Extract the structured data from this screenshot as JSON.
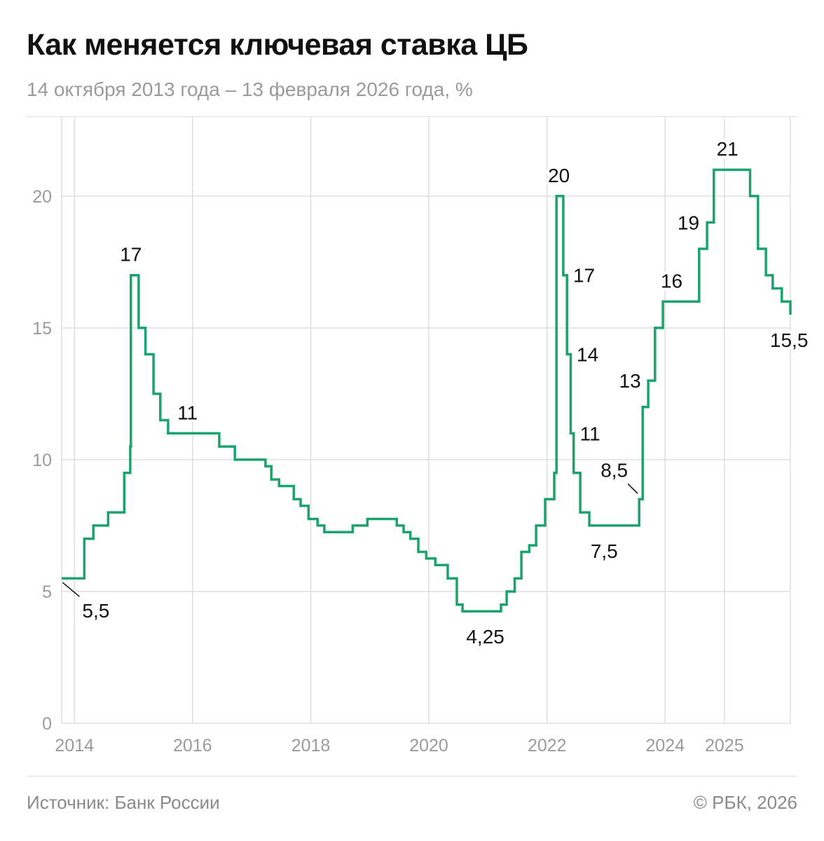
{
  "title": "Как меняется ключевая ставка ЦБ",
  "subtitle": "14 октября 2013 года – 13 февраля 2026 года, %",
  "footer": {
    "source": "Источник: Банк России",
    "copyright": "© РБК, 2026"
  },
  "colors": {
    "line": "#1aa36a",
    "grid": "#dedede",
    "tick": "#9a9a9a",
    "text": "#111111"
  },
  "chart_data": {
    "type": "line",
    "step": true,
    "grid": true,
    "ylim": [
      0,
      23
    ],
    "yticks": [
      0,
      5,
      10,
      15,
      20
    ],
    "xlim": [
      "2013-10-14",
      "2026-02-13"
    ],
    "xticks": [
      {
        "date": "2014-01-01",
        "label": "2014"
      },
      {
        "date": "2016-01-01",
        "label": "2016"
      },
      {
        "date": "2018-01-01",
        "label": "2018"
      },
      {
        "date": "2020-01-01",
        "label": "2020"
      },
      {
        "date": "2022-01-01",
        "label": "2022"
      },
      {
        "date": "2024-01-01",
        "label": "2024"
      },
      {
        "date": "2025-01-01",
        "label": "2025"
      }
    ],
    "series": [
      {
        "points": [
          [
            "2013-10-14",
            5.5
          ],
          [
            "2014-03-03",
            7.0
          ],
          [
            "2014-04-28",
            7.5
          ],
          [
            "2014-07-28",
            8.0
          ],
          [
            "2014-11-05",
            9.5
          ],
          [
            "2014-12-12",
            10.5
          ],
          [
            "2014-12-16",
            17.0
          ],
          [
            "2015-02-02",
            15.0
          ],
          [
            "2015-03-16",
            14.0
          ],
          [
            "2015-05-05",
            12.5
          ],
          [
            "2015-06-16",
            11.5
          ],
          [
            "2015-08-03",
            11.0
          ],
          [
            "2016-06-14",
            10.5
          ],
          [
            "2016-09-19",
            10.0
          ],
          [
            "2017-03-27",
            9.75
          ],
          [
            "2017-05-02",
            9.25
          ],
          [
            "2017-06-19",
            9.0
          ],
          [
            "2017-09-18",
            8.5
          ],
          [
            "2017-10-30",
            8.25
          ],
          [
            "2017-12-18",
            7.75
          ],
          [
            "2018-02-12",
            7.5
          ],
          [
            "2018-03-26",
            7.25
          ],
          [
            "2018-09-17",
            7.5
          ],
          [
            "2018-12-17",
            7.75
          ],
          [
            "2019-06-17",
            7.5
          ],
          [
            "2019-07-29",
            7.25
          ],
          [
            "2019-09-09",
            7.0
          ],
          [
            "2019-10-28",
            6.5
          ],
          [
            "2019-12-16",
            6.25
          ],
          [
            "2020-02-10",
            6.0
          ],
          [
            "2020-04-27",
            5.5
          ],
          [
            "2020-06-22",
            4.5
          ],
          [
            "2020-07-27",
            4.25
          ],
          [
            "2021-03-22",
            4.5
          ],
          [
            "2021-04-26",
            5.0
          ],
          [
            "2021-06-15",
            5.5
          ],
          [
            "2021-07-26",
            6.5
          ],
          [
            "2021-09-13",
            6.75
          ],
          [
            "2021-10-25",
            7.5
          ],
          [
            "2021-12-20",
            8.5
          ],
          [
            "2022-02-14",
            9.5
          ],
          [
            "2022-02-28",
            20.0
          ],
          [
            "2022-04-11",
            17.0
          ],
          [
            "2022-05-04",
            14.0
          ],
          [
            "2022-05-27",
            11.0
          ],
          [
            "2022-06-14",
            9.5
          ],
          [
            "2022-07-25",
            8.0
          ],
          [
            "2022-09-19",
            7.5
          ],
          [
            "2023-07-24",
            8.5
          ],
          [
            "2023-08-15",
            12.0
          ],
          [
            "2023-09-18",
            13.0
          ],
          [
            "2023-10-30",
            15.0
          ],
          [
            "2023-12-18",
            16.0
          ],
          [
            "2024-07-29",
            18.0
          ],
          [
            "2024-09-16",
            19.0
          ],
          [
            "2024-10-28",
            21.0
          ],
          [
            "2025-06-09",
            20.0
          ],
          [
            "2025-07-28",
            18.0
          ],
          [
            "2025-09-15",
            17.0
          ],
          [
            "2025-10-27",
            16.5
          ],
          [
            "2025-12-22",
            16.0
          ],
          [
            "2026-02-13",
            15.5
          ]
        ]
      }
    ],
    "annotations": [
      {
        "label": "5,5",
        "date": "2013-10-20",
        "value": 5.5,
        "place": "below-right",
        "leader": true
      },
      {
        "label": "17",
        "date": "2014-12-16",
        "value": 17.0,
        "place": "above"
      },
      {
        "label": "11",
        "date": "2015-12-01",
        "value": 11.0,
        "place": "above"
      },
      {
        "label": "4,25",
        "date": "2020-12-15",
        "value": 4.25,
        "place": "below"
      },
      {
        "label": "20",
        "date": "2022-03-15",
        "value": 20.0,
        "place": "above"
      },
      {
        "label": "17",
        "date": "2022-04-20",
        "value": 17.0,
        "place": "right"
      },
      {
        "label": "14",
        "date": "2022-05-12",
        "value": 14.0,
        "place": "right"
      },
      {
        "label": "11",
        "date": "2022-06-01",
        "value": 11.0,
        "place": "right"
      },
      {
        "label": "7,5",
        "date": "2022-12-20",
        "value": 7.5,
        "place": "below"
      },
      {
        "label": "8,5",
        "date": "2023-07-24",
        "value": 8.5,
        "place": "above-left",
        "leader": true
      },
      {
        "label": "13",
        "date": "2023-09-25",
        "value": 13.0,
        "place": "left"
      },
      {
        "label": "16",
        "date": "2024-02-10",
        "value": 16.0,
        "place": "above"
      },
      {
        "label": "19",
        "date": "2024-09-20",
        "value": 19.0,
        "place": "left"
      },
      {
        "label": "21",
        "date": "2025-01-20",
        "value": 21.0,
        "place": "above"
      },
      {
        "label": "15,5",
        "date": "2026-02-05",
        "value": 15.5,
        "place": "below"
      }
    ]
  }
}
